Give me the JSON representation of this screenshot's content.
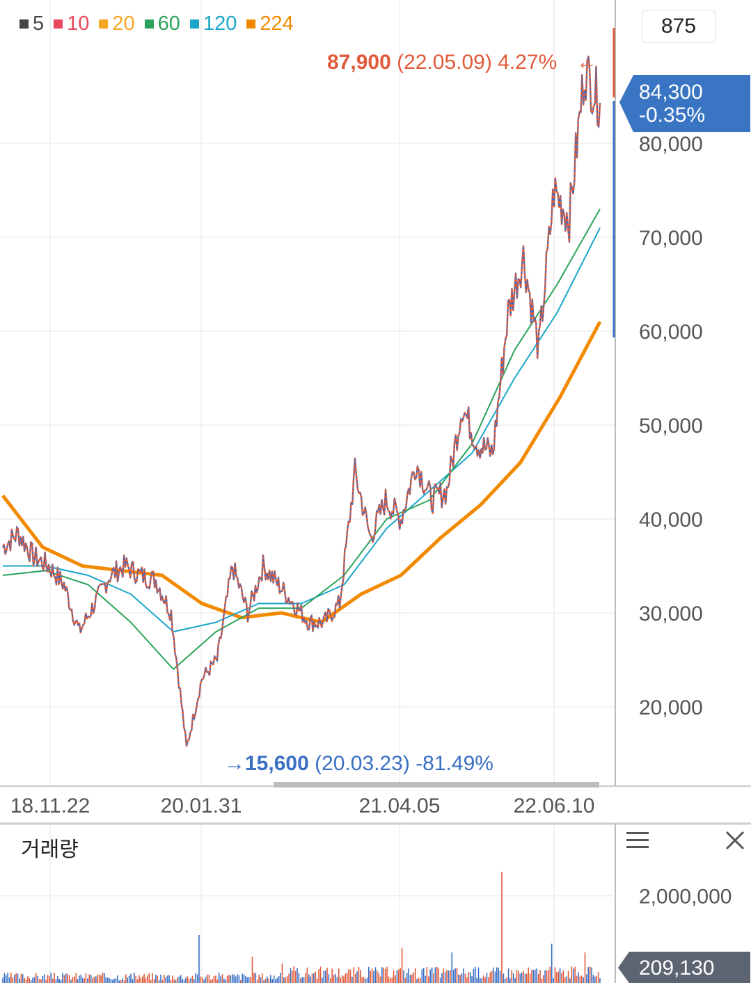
{
  "legend": [
    {
      "label": "5",
      "color": "#444444"
    },
    {
      "label": "10",
      "color": "#e8465a"
    },
    {
      "label": "20",
      "color": "#f5a623"
    },
    {
      "label": "60",
      "color": "#2aa35a"
    },
    {
      "label": "120",
      "color": "#1aa6c9"
    },
    {
      "label": "224",
      "color": "#f28a00"
    }
  ],
  "period_label": "875",
  "volume_title": "거래량",
  "chart_data": {
    "type": "line",
    "price_axis": {
      "ticks": [
        "80,000",
        "70,000",
        "60,000",
        "50,000",
        "40,000",
        "30,000",
        "20,000"
      ],
      "values": [
        80000,
        70000,
        60000,
        50000,
        40000,
        30000,
        20000
      ],
      "ylim": [
        12000,
        96000
      ]
    },
    "x_ticks": [
      "18.11.22",
      "20.01.31",
      "21.04.05",
      "22.06.10"
    ],
    "current": {
      "price": "84,300",
      "change": "-0.35%"
    },
    "high": {
      "value": "87,900",
      "date": "(22.05.09)",
      "pct": "4.27%",
      "arrow": "←"
    },
    "low": {
      "value": "15,600",
      "date": "(20.03.23)",
      "pct": "-81.49%",
      "arrow": "→"
    },
    "price_series": [
      {
        "date": "18.11",
        "v": 37000
      },
      {
        "date": "19.01",
        "v": 38500
      },
      {
        "date": "19.03",
        "v": 36000
      },
      {
        "date": "19.05",
        "v": 35000
      },
      {
        "date": "19.07",
        "v": 33000
      },
      {
        "date": "19.08",
        "v": 28000
      },
      {
        "date": "19.09",
        "v": 31000
      },
      {
        "date": "19.10",
        "v": 34000
      },
      {
        "date": "19.11",
        "v": 35000
      },
      {
        "date": "19.12",
        "v": 34000
      },
      {
        "date": "20.01",
        "v": 33500
      },
      {
        "date": "20.02",
        "v": 30000
      },
      {
        "date": "20.03",
        "v": 15600
      },
      {
        "date": "20.04",
        "v": 23000
      },
      {
        "date": "20.05",
        "v": 25000
      },
      {
        "date": "20.06",
        "v": 35000
      },
      {
        "date": "20.07",
        "v": 30000
      },
      {
        "date": "20.08",
        "v": 35000
      },
      {
        "date": "20.09",
        "v": 33000
      },
      {
        "date": "20.10",
        "v": 31000
      },
      {
        "date": "20.11",
        "v": 29000
      },
      {
        "date": "20.12",
        "v": 29000
      },
      {
        "date": "21.01",
        "v": 31000
      },
      {
        "date": "21.02",
        "v": 45000
      },
      {
        "date": "21.03",
        "v": 38000
      },
      {
        "date": "21.04",
        "v": 42000
      },
      {
        "date": "21.05",
        "v": 40000
      },
      {
        "date": "21.06",
        "v": 46000
      },
      {
        "date": "21.07",
        "v": 42000
      },
      {
        "date": "21.08",
        "v": 43000
      },
      {
        "date": "21.09",
        "v": 52000
      },
      {
        "date": "21.10",
        "v": 48000
      },
      {
        "date": "21.11",
        "v": 47000
      },
      {
        "date": "21.12",
        "v": 62000
      },
      {
        "date": "22.01",
        "v": 68000
      },
      {
        "date": "22.02",
        "v": 58000
      },
      {
        "date": "22.03",
        "v": 75000
      },
      {
        "date": "22.04",
        "v": 72000
      },
      {
        "date": "22.05",
        "v": 87900
      },
      {
        "date": "22.06",
        "v": 84300
      }
    ],
    "ma_series": [
      {
        "name": "224",
        "color": "#f28a00",
        "values": [
          42500,
          37000,
          35000,
          34500,
          34000,
          31000,
          29500,
          30000,
          29000,
          32000,
          34000,
          38000,
          41500,
          46000,
          53000,
          61000
        ]
      },
      {
        "name": "120",
        "color": "#1aa6c9",
        "values": [
          35000,
          35000,
          34000,
          32000,
          28000,
          29000,
          31000,
          31000,
          33000,
          39000,
          43000,
          47000,
          55000,
          62000,
          71000
        ]
      },
      {
        "name": "60",
        "color": "#2aa35a",
        "values": [
          34000,
          34500,
          33000,
          29000,
          24000,
          28000,
          30500,
          30500,
          34000,
          40000,
          42000,
          48000,
          58000,
          65000,
          73000
        ]
      }
    ],
    "volume": {
      "tick": "2,000,000",
      "current": "209,130",
      "ylim": [
        0,
        2600000
      ]
    }
  }
}
